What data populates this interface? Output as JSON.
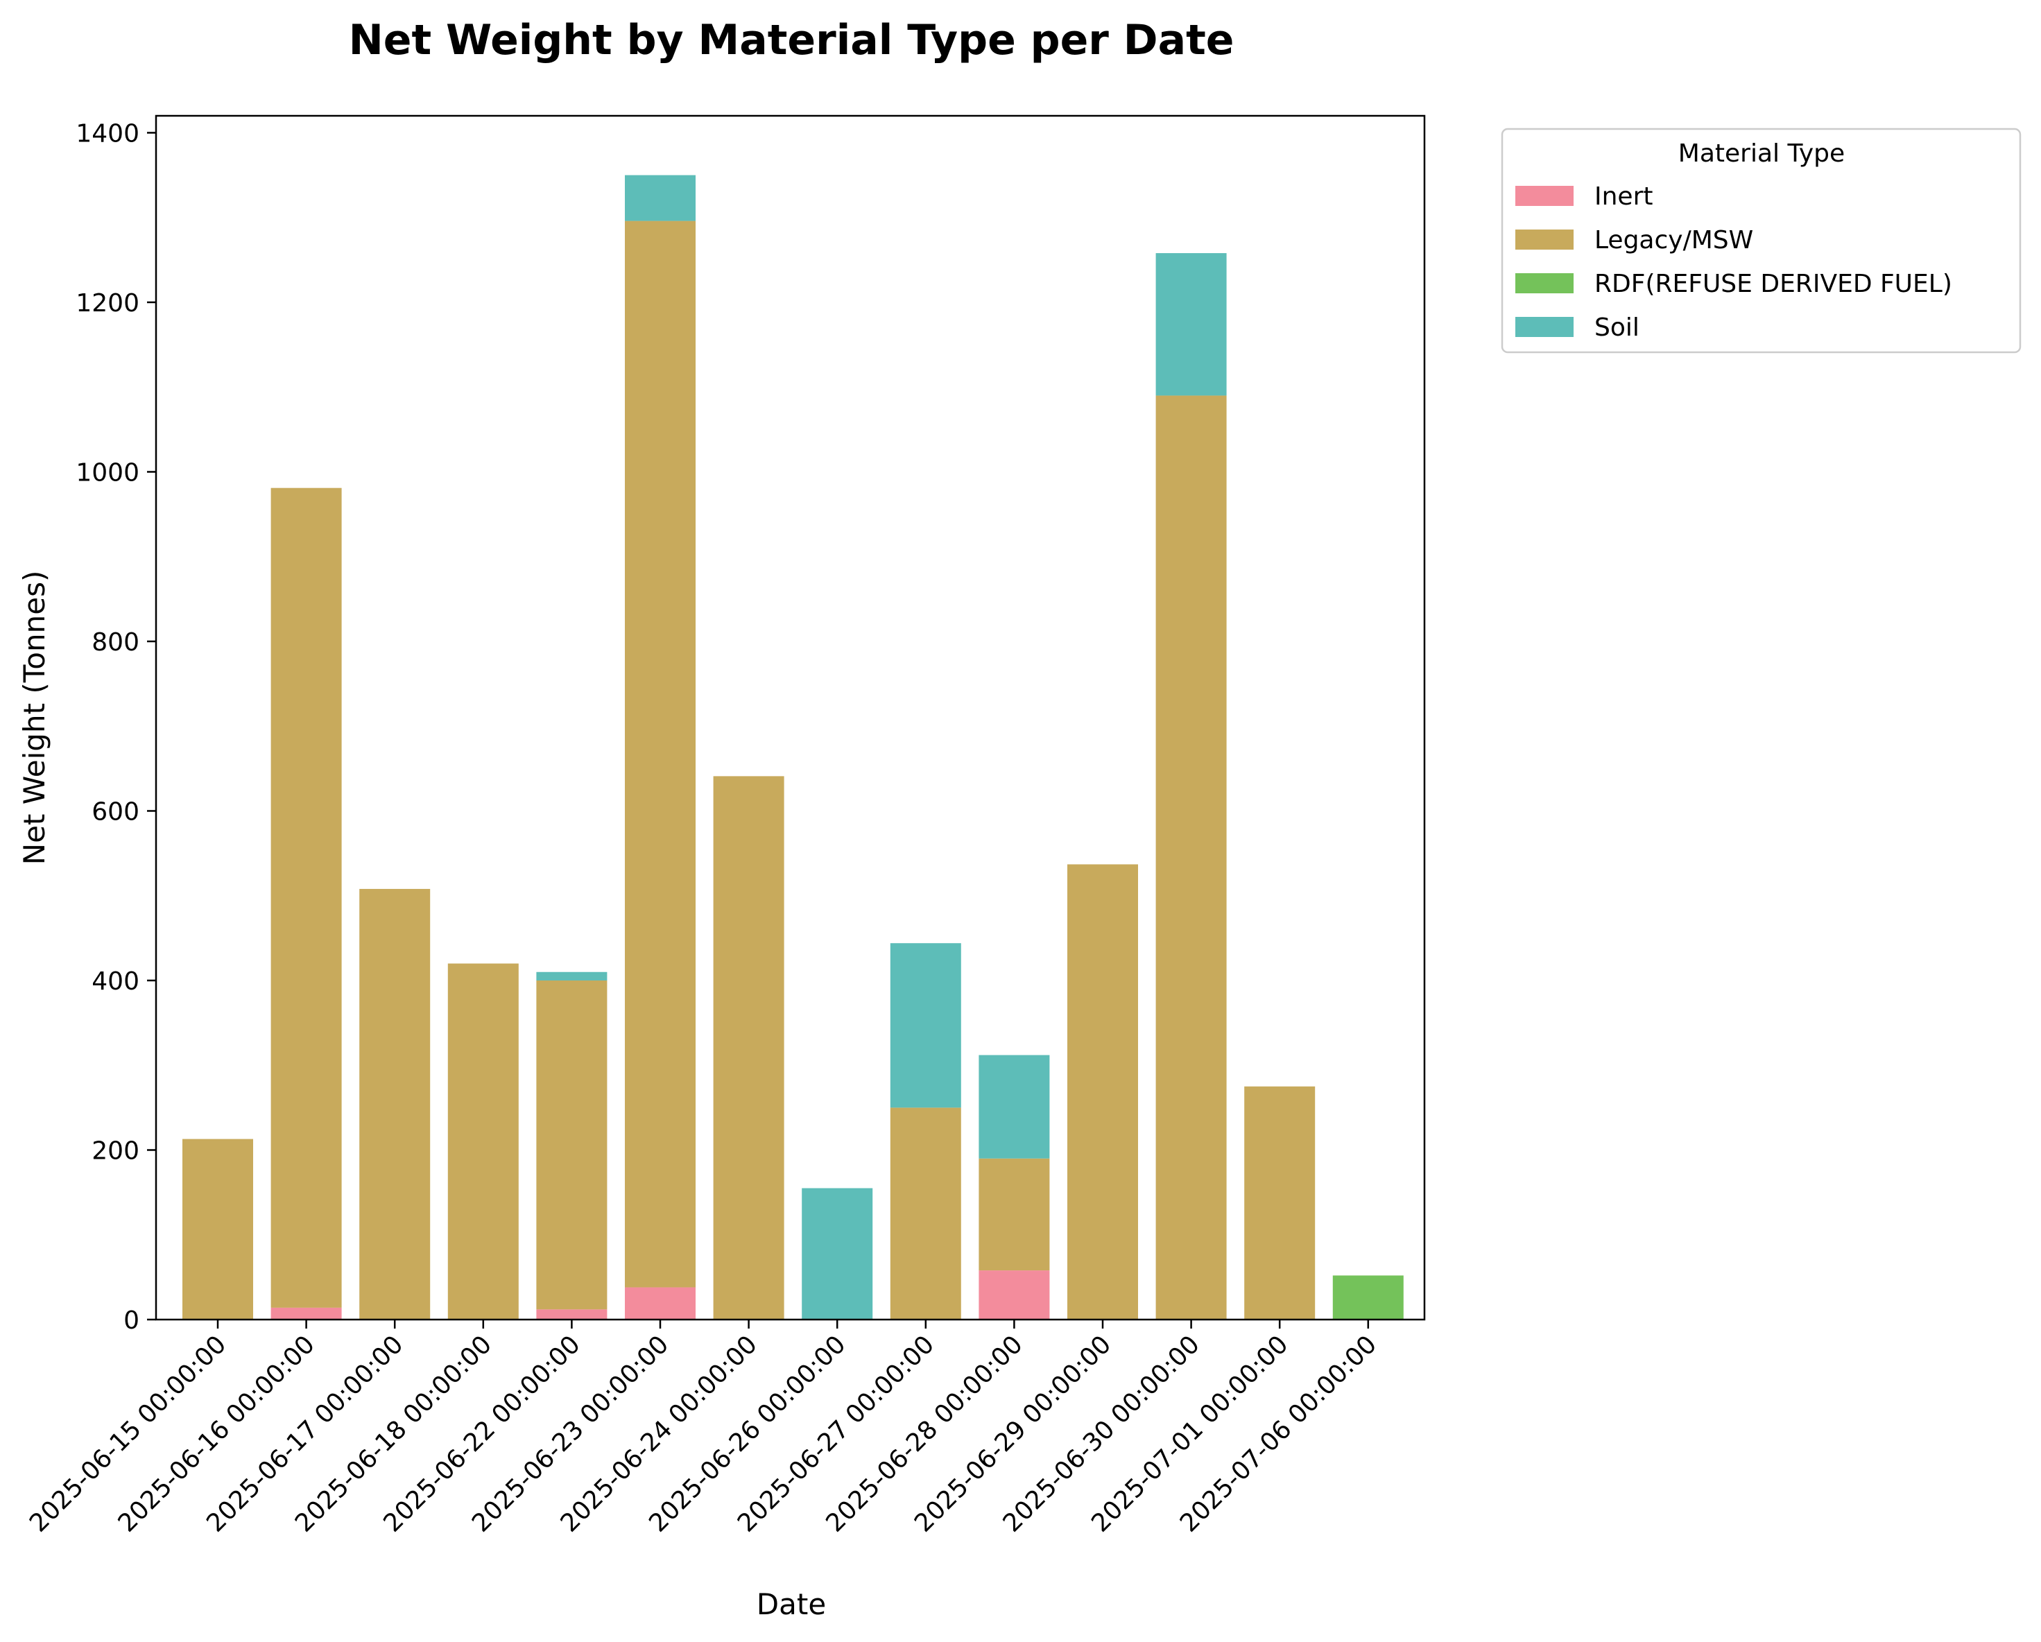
{
  "chart_data": {
    "type": "bar",
    "stacked": true,
    "title": "Net Weight by Material Type per Date",
    "xlabel": "Date",
    "ylabel": "Net Weight (Tonnes)",
    "ylim": [
      0,
      1420
    ],
    "yticks": [
      "0",
      "200",
      "400",
      "600",
      "800",
      "1000",
      "1200",
      "1400"
    ],
    "grid": false,
    "legend_position": "outside-top-right",
    "legend_title": "Material Type",
    "categories": [
      "2025-06-15 00:00:00",
      "2025-06-16 00:00:00",
      "2025-06-17 00:00:00",
      "2025-06-18 00:00:00",
      "2025-06-22 00:00:00",
      "2025-06-23 00:00:00",
      "2025-06-24 00:00:00",
      "2025-06-26 00:00:00",
      "2025-06-27 00:00:00",
      "2025-06-28 00:00:00",
      "2025-06-29 00:00:00",
      "2025-06-30 00:00:00",
      "2025-07-01 00:00:00",
      "2025-07-06 00:00:00"
    ],
    "series": [
      {
        "name": "Inert",
        "color": "#f38c9c",
        "values": [
          0,
          14,
          0,
          0,
          12,
          38,
          0,
          0,
          0,
          58,
          0,
          0,
          0,
          0
        ]
      },
      {
        "name": "Legacy/MSW",
        "color": "#c8aa5c",
        "values": [
          213,
          967,
          508,
          420,
          388,
          1258,
          641,
          0,
          250,
          132,
          537,
          1090,
          275,
          0
        ]
      },
      {
        "name": "RDF(REFUSE DERIVED FUEL)",
        "color": "#74c25a",
        "values": [
          0,
          0,
          0,
          0,
          0,
          0,
          0,
          0,
          0,
          0,
          0,
          0,
          0,
          52
        ]
      },
      {
        "name": "Soil",
        "color": "#5dbdb8",
        "values": [
          0,
          0,
          0,
          0,
          10,
          54,
          0,
          155,
          194,
          122,
          0,
          168,
          0,
          0
        ]
      }
    ]
  }
}
